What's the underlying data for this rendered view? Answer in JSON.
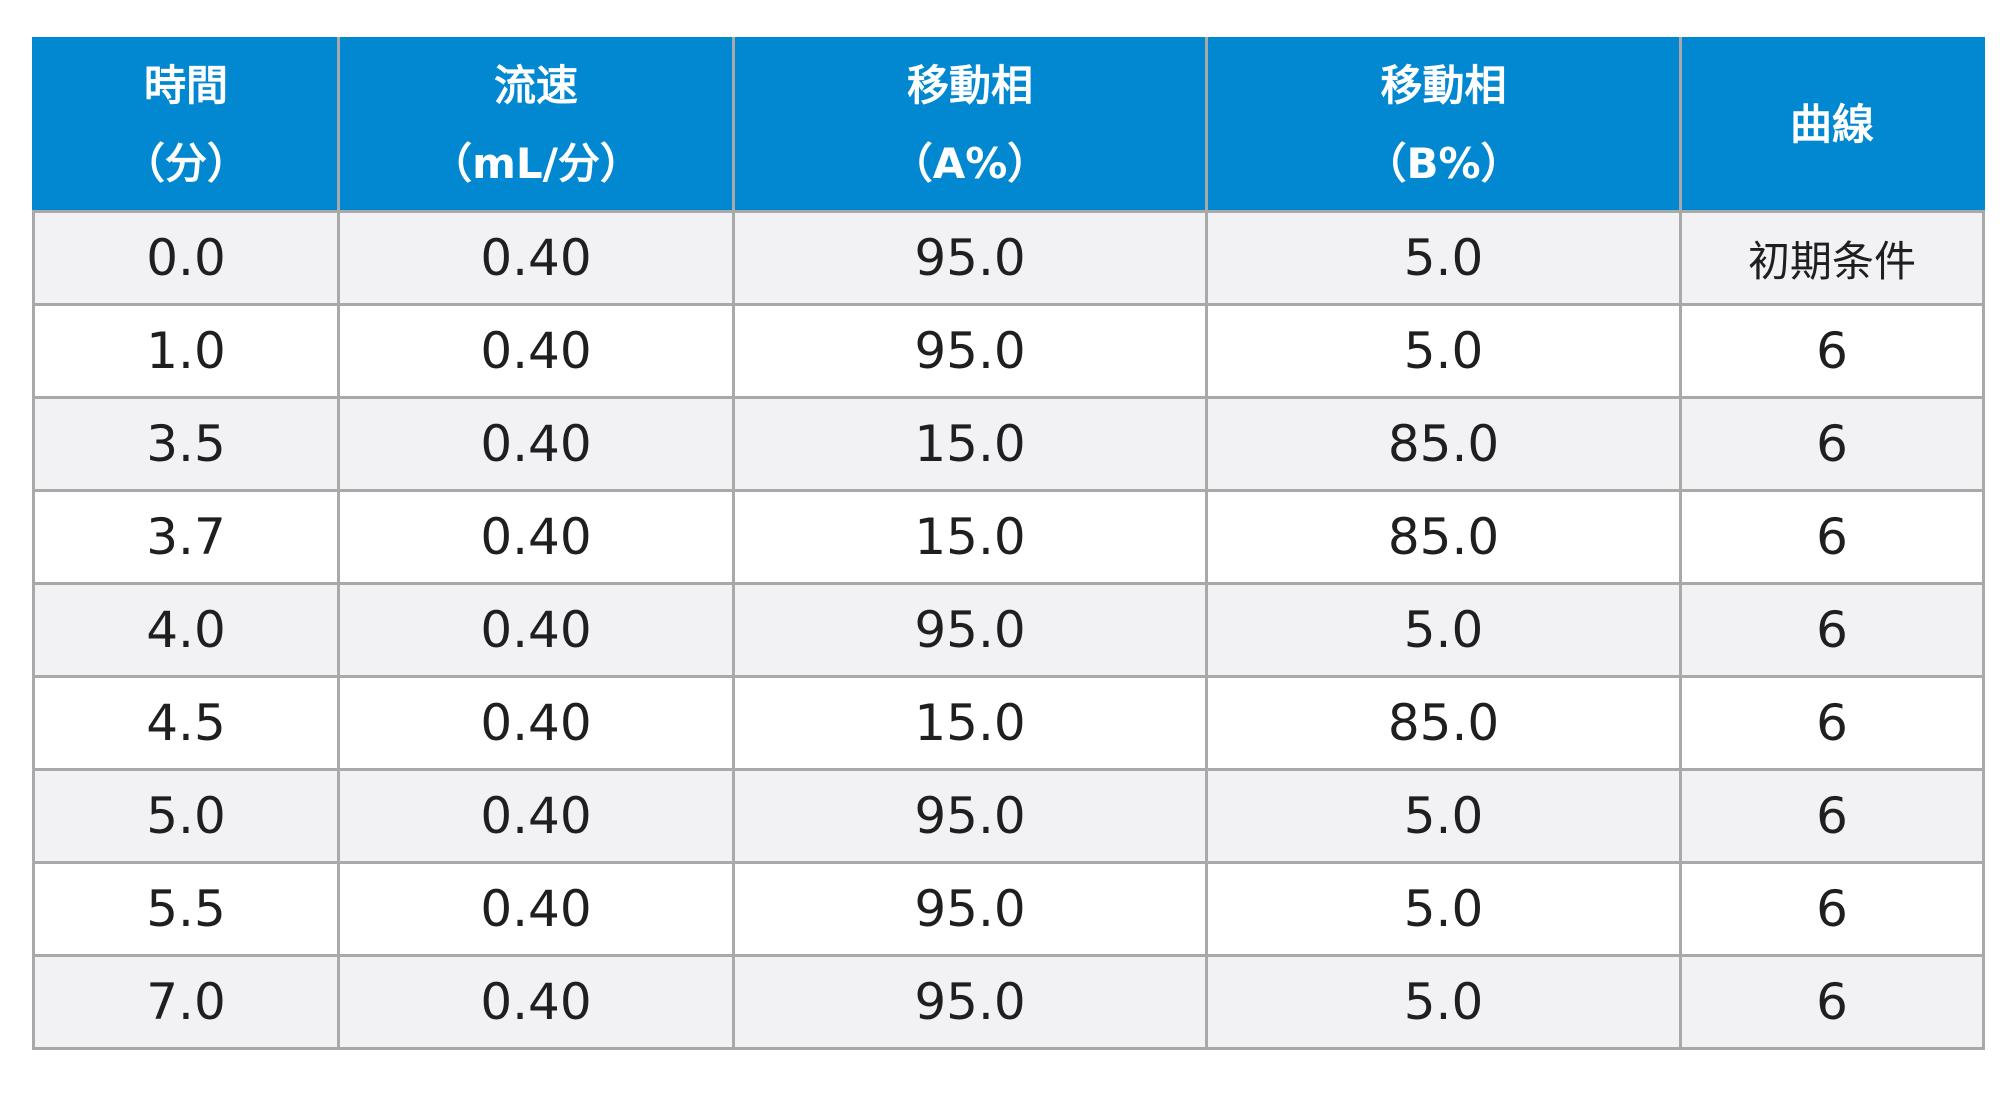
{
  "table": {
    "headers": [
      [
        "時間",
        "（分）"
      ],
      [
        "流速",
        "（mL/分）"
      ],
      [
        "移動相",
        "（A%）"
      ],
      [
        "移動相",
        "（B%）"
      ],
      [
        "曲線"
      ]
    ],
    "rows": [
      [
        "0.0",
        "0.40",
        "95.0",
        "5.0",
        "初期条件"
      ],
      [
        "1.0",
        "0.40",
        "95.0",
        "5.0",
        "6"
      ],
      [
        "3.5",
        "0.40",
        "15.0",
        "85.0",
        "6"
      ],
      [
        "3.7",
        "0.40",
        "15.0",
        "85.0",
        "6"
      ],
      [
        "4.0",
        "0.40",
        "95.0",
        "5.0",
        "6"
      ],
      [
        "4.5",
        "0.40",
        "15.0",
        "85.0",
        "6"
      ],
      [
        "5.0",
        "0.40",
        "95.0",
        "5.0",
        "6"
      ],
      [
        "5.5",
        "0.40",
        "95.0",
        "5.0",
        "6"
      ],
      [
        "7.0",
        "0.40",
        "95.0",
        "5.0",
        "6"
      ]
    ]
  },
  "colors": {
    "header_background": "#0288d1",
    "header_text": "#ffffff",
    "row_shaded": "#f2f2f4",
    "row_plain": "#ffffff",
    "grid_line": "#a9a9a9"
  }
}
